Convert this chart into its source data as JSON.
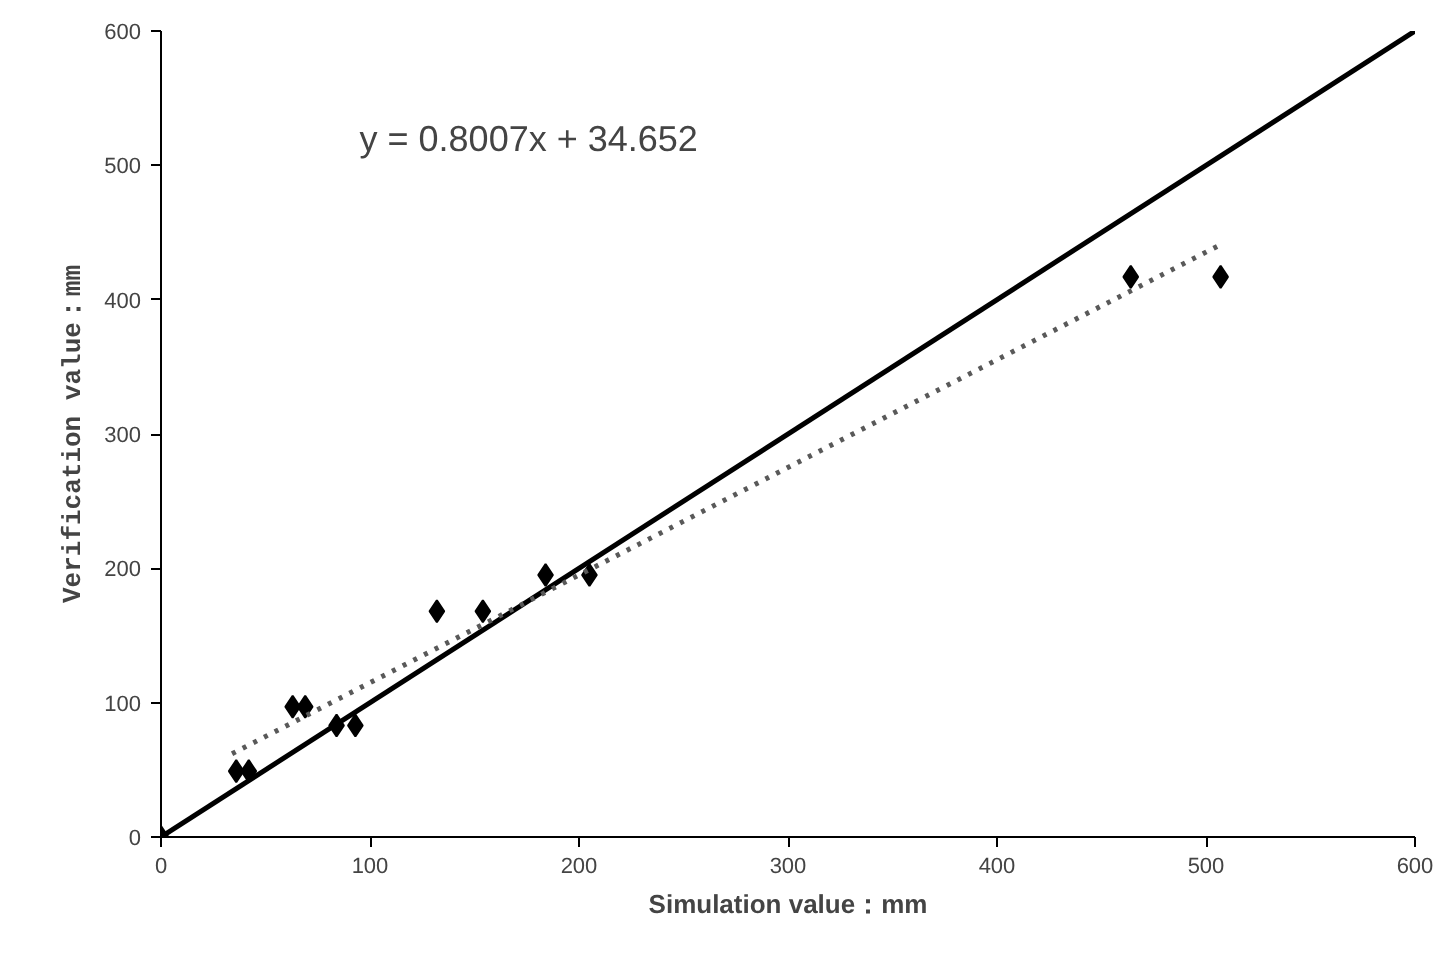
{
  "chart_data": {
    "type": "scatter",
    "xlabel": "Simulation value：mm",
    "ylabel": "Verification value：mm",
    "xlim": [
      0,
      600
    ],
    "ylim": [
      0,
      600
    ],
    "xticks": [
      0,
      100,
      200,
      300,
      400,
      500,
      600
    ],
    "yticks": [
      0,
      100,
      200,
      300,
      400,
      500,
      600
    ],
    "grid": false,
    "marker": "diamond",
    "annotations": [
      "y = 0.8007x + 34.652"
    ],
    "series": [
      {
        "color": "#000000",
        "x": [
          0,
          36,
          42,
          63,
          69,
          84,
          93,
          132,
          154,
          184,
          205,
          464,
          507
        ],
        "values": [
          0,
          49,
          49,
          97,
          97,
          83,
          83,
          168,
          168,
          195,
          195,
          417,
          417
        ]
      },
      {
        "type": "line",
        "color": "#000000",
        "line_style": "solid",
        "marker": "none",
        "x": [
          0,
          600
        ],
        "values": [
          0,
          600
        ]
      },
      {
        "type": "line",
        "color": "#595959",
        "line_style": "dotted",
        "marker": "none",
        "x": [
          34,
          507
        ],
        "values": [
          62,
          441
        ]
      }
    ]
  }
}
